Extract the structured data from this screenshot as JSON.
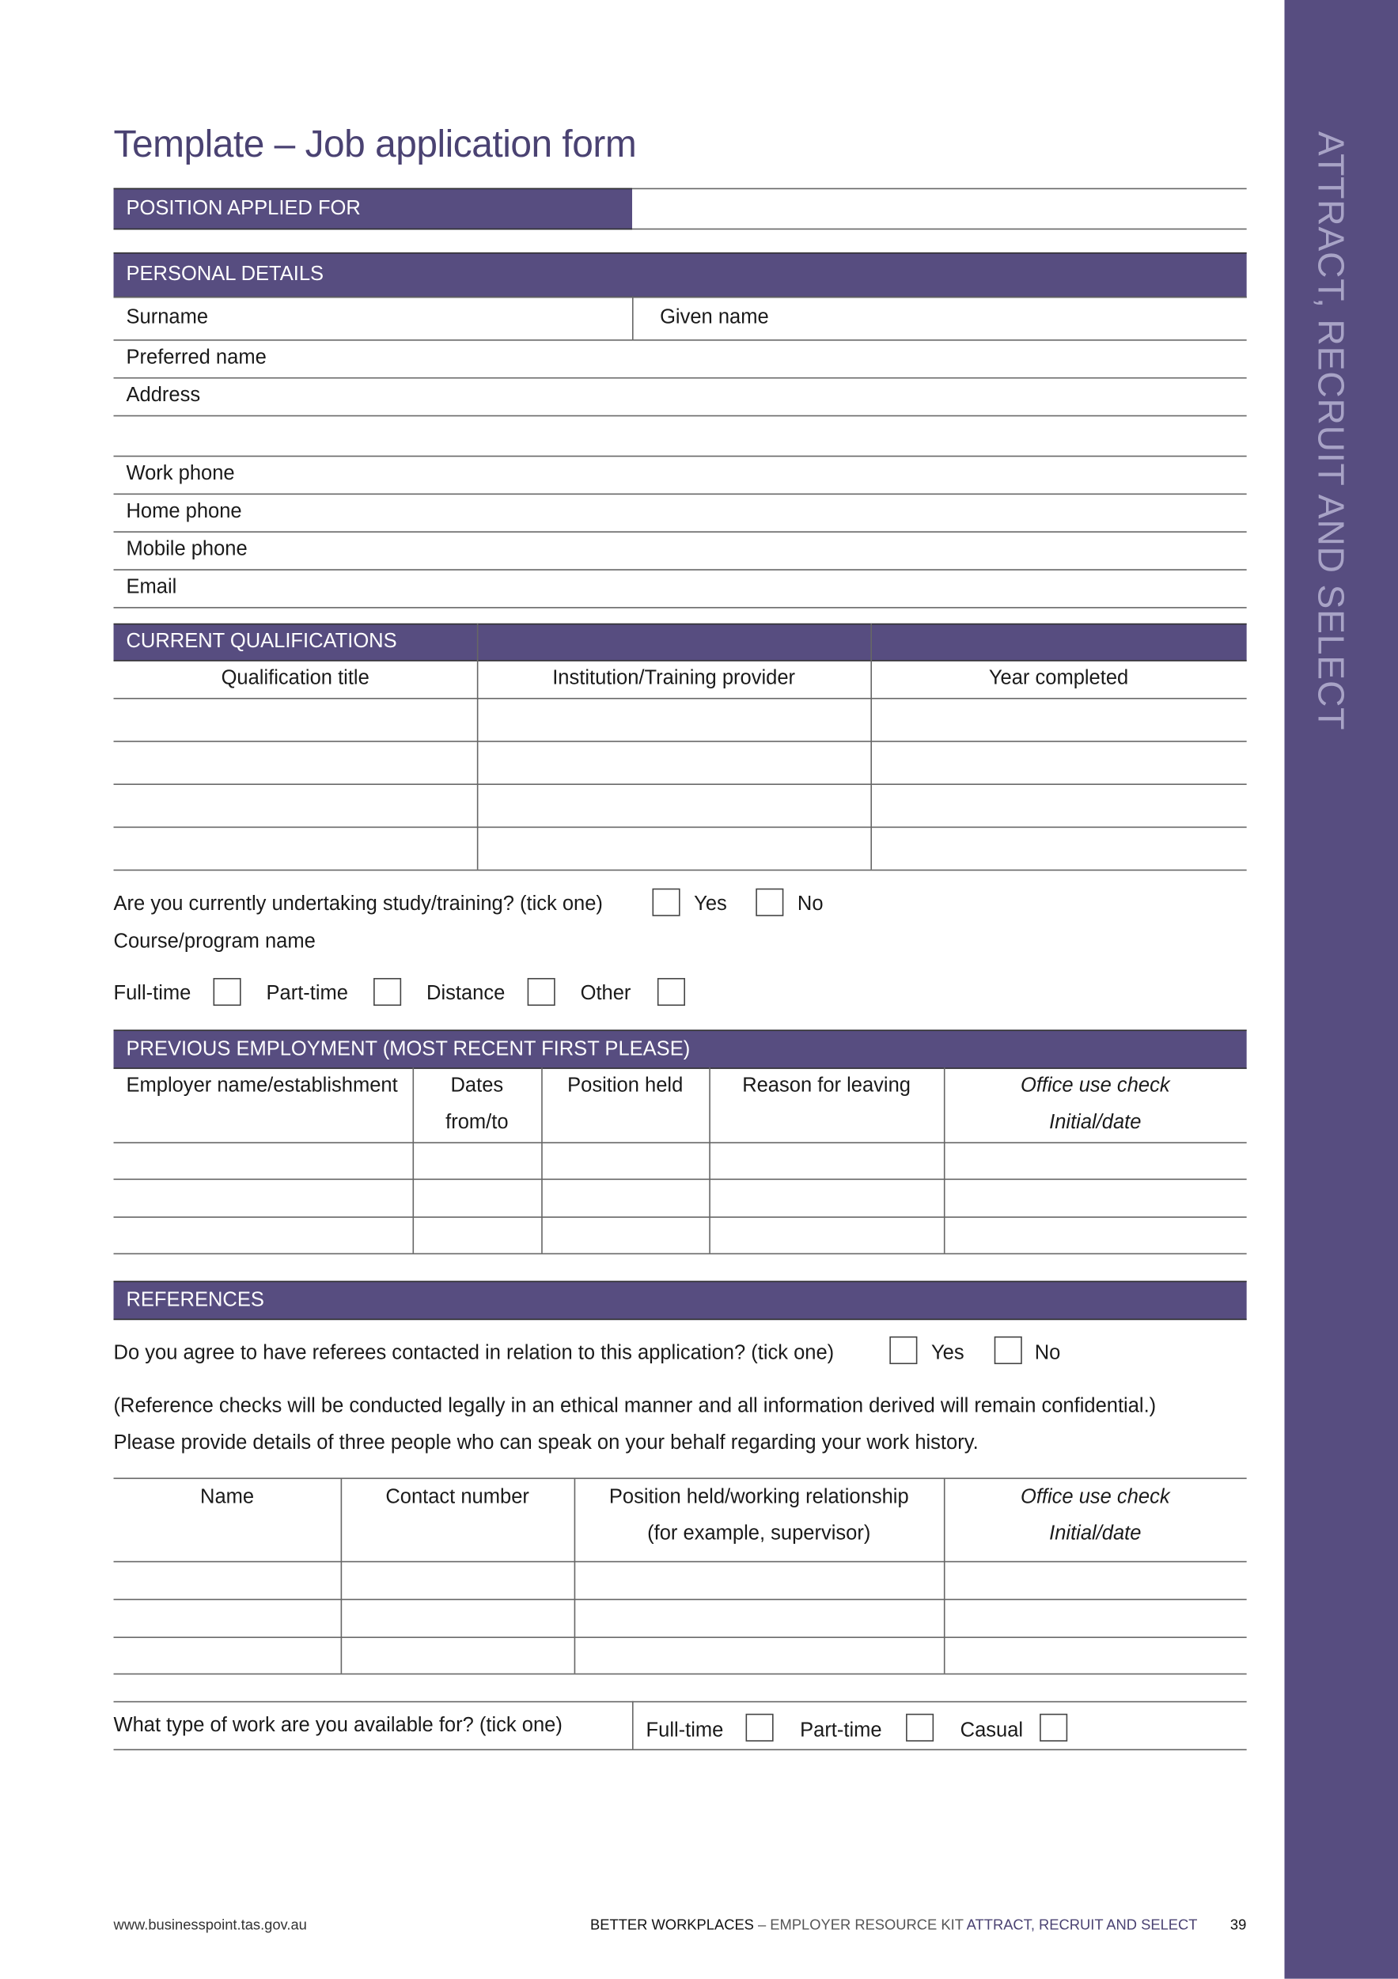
{
  "title": "Template – Job application form",
  "sidebar_text": "ATTRACT, RECRUIT AND SELECT",
  "colors": {
    "brand": "#574d80",
    "title": "#4a4272",
    "sidebar_text": "#a8a3c6"
  },
  "position": {
    "header": "POSITION APPLIED FOR",
    "value": ""
  },
  "personal": {
    "header": "PERSONAL DETAILS",
    "surname": "Surname",
    "given_name": "Given name",
    "fields": [
      "Preferred name",
      "Address",
      "",
      "Work phone",
      "Home phone",
      "Mobile phone",
      "Email"
    ]
  },
  "qualifications": {
    "header": "CURRENT QUALIFICATIONS",
    "columns": [
      "Qualification title",
      "Institution/Training provider",
      "Year completed"
    ],
    "rows": 4
  },
  "study": {
    "question": "Are you currently undertaking study/training? (tick one)",
    "yes": "Yes",
    "no": "No",
    "course": "Course/program name",
    "modes": [
      "Full-time",
      "Part-time",
      "Distance",
      "Other"
    ]
  },
  "employment": {
    "header": "PREVIOUS EMPLOYMENT (MOST RECENT FIRST PLEASE)",
    "columns": [
      "Employer name/establishment",
      "Dates",
      "Position held",
      "Reason for leaving",
      "Office use check"
    ],
    "columns_line2": [
      "",
      "from/to",
      "",
      "",
      "Initial/date"
    ],
    "rows": 3
  },
  "references": {
    "header": "REFERENCES",
    "question": "Do you agree to have referees contacted in relation to this application? (tick one)",
    "yes": "Yes",
    "no": "No",
    "note": "(Reference checks will be conducted legally in an ethical manner and all information derived will remain confidential.)",
    "instruction": "Please provide details of three people who can speak on your behalf regarding your work history.",
    "columns": [
      "Name",
      "Contact number",
      "Position held/working relationship",
      "Office use check"
    ],
    "columns_line2": [
      "",
      "",
      "(for example, supervisor)",
      "Initial/date"
    ],
    "rows": 3
  },
  "availability": {
    "question": "What type of work are you available for? (tick one)",
    "options": [
      "Full-time",
      "Part-time",
      "Casual"
    ]
  },
  "footer": {
    "url": "www.businesspoint.tas.gov.au",
    "brand": "BETTER WORKPLACES",
    "kit": " – EMPLOYER RESOURCE KIT ",
    "section": "ATTRACT, RECRUIT AND SELECT",
    "page": "39"
  }
}
